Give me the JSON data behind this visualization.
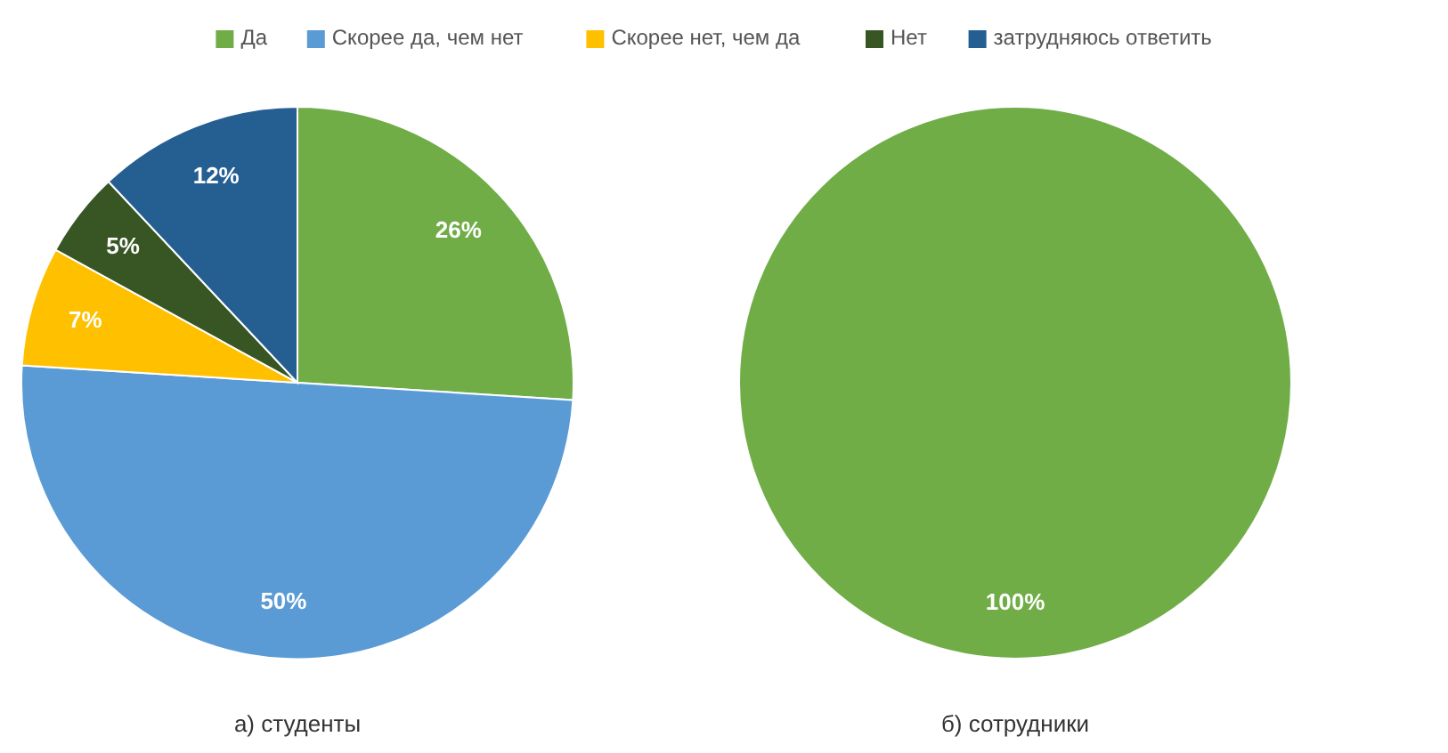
{
  "chart_data": [
    {
      "type": "pie",
      "title": "а) студенты",
      "categories": [
        "Да",
        "Скорее да, чем нет",
        "Скорее нет, чем да",
        "Нет",
        "затрудняюсь ответить"
      ],
      "values": [
        26,
        50,
        7,
        5,
        12
      ],
      "value_labels": [
        "26%",
        "50%",
        "7%",
        "5%",
        "12%"
      ],
      "colors": [
        "#70ad47",
        "#5b9bd5",
        "#ffc000",
        "#375623",
        "#255e91"
      ],
      "legend": "top"
    },
    {
      "type": "pie",
      "title": "б) сотрудники",
      "categories": [
        null
      ],
      "values": [
        100
      ],
      "value_labels": [
        "100%"
      ],
      "colors": [
        "#70ad47"
      ]
    }
  ]
}
